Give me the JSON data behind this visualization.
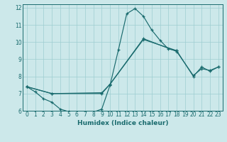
{
  "xlabel": "Humidex (Indice chaleur)",
  "bg_color": "#cce8ea",
  "grid_color": "#9ecdd1",
  "line_color": "#1a6b6e",
  "xlim": [
    -0.5,
    23.5
  ],
  "ylim": [
    6,
    12.2
  ],
  "xticks": [
    0,
    1,
    2,
    3,
    4,
    5,
    6,
    7,
    8,
    9,
    10,
    11,
    12,
    13,
    14,
    15,
    16,
    17,
    18,
    19,
    20,
    21,
    22,
    23
  ],
  "yticks": [
    6,
    7,
    8,
    9,
    10,
    11,
    12
  ],
  "series": [
    {
      "x": [
        0,
        1,
        2,
        3,
        4,
        5,
        6,
        7,
        8,
        9,
        10,
        11,
        12,
        13,
        14,
        15,
        16,
        17,
        18
      ],
      "y": [
        7.4,
        7.1,
        6.7,
        6.5,
        6.1,
        5.95,
        5.82,
        5.82,
        5.92,
        6.1,
        7.5,
        9.55,
        11.65,
        11.95,
        11.5,
        10.7,
        10.1,
        9.6,
        9.5
      ]
    },
    {
      "x": [
        0,
        3,
        9,
        10,
        14,
        18,
        20,
        21,
        22,
        23
      ],
      "y": [
        7.4,
        7.0,
        7.0,
        7.55,
        10.15,
        9.5,
        8.0,
        8.55,
        8.3,
        8.55
      ]
    },
    {
      "x": [
        0,
        3,
        9,
        10,
        14,
        18,
        20,
        21,
        22,
        23
      ],
      "y": [
        7.4,
        7.0,
        7.05,
        7.55,
        10.2,
        9.45,
        8.05,
        8.45,
        8.35,
        8.55
      ]
    }
  ]
}
